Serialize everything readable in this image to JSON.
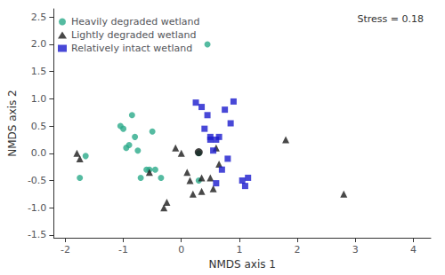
{
  "chart_data": {
    "type": "scatter",
    "xlabel": "NMDS axis 1",
    "ylabel": "NMDS axis 2",
    "annotation": "Stress = 0.18",
    "xlim": [
      -2.2,
      4.3
    ],
    "ylim": [
      -1.55,
      2.65
    ],
    "xticks": [
      -2,
      -1,
      0,
      1,
      2,
      3,
      4
    ],
    "yticks": [
      -1.5,
      {
        "value": -1.0,
        "label": "-1.0"
      },
      -0.5,
      {
        "value": 0.0,
        "label": "0.0"
      },
      0.5,
      {
        "value": 1.0,
        "label": "1.0"
      },
      1.5,
      {
        "value": 2.0,
        "label": "2.0"
      },
      2.5
    ],
    "grid": false,
    "legend": "upper left",
    "series": [
      {
        "name": "Heavily degraded wetland",
        "color": "#2aaa8a",
        "marker": "circle",
        "x": [
          -1.75,
          -1.65,
          -1.05,
          -1.0,
          -0.95,
          -0.9,
          -0.85,
          -0.8,
          -0.75,
          -0.6,
          -0.55,
          -0.5,
          -0.45,
          -0.35,
          0.3,
          0.3,
          0.45,
          -0.7
        ],
        "y": [
          -0.45,
          -0.05,
          0.5,
          0.45,
          0.1,
          0.15,
          0.7,
          0.3,
          0.05,
          -0.3,
          -0.3,
          0.4,
          -0.3,
          -0.45,
          -0.5,
          0.0,
          2.0,
          -0.45
        ]
      },
      {
        "name": "Lightly degraded wetland",
        "color": "#1a1a1a",
        "marker": "triangle",
        "x": [
          -1.8,
          -1.75,
          -0.55,
          -0.3,
          -0.25,
          -0.1,
          0.1,
          0.15,
          0.2,
          0.35,
          0.5,
          0.55,
          0.65,
          1.8,
          2.8,
          0.0,
          0.35,
          0.6
        ],
        "y": [
          0.0,
          -0.1,
          -0.35,
          -1.0,
          -0.9,
          0.1,
          -0.35,
          -0.5,
          -0.75,
          -0.7,
          -0.45,
          -0.65,
          -0.2,
          0.25,
          -0.75,
          0.0,
          -0.45,
          0.1
        ]
      },
      {
        "name": "Relatively intact wetland",
        "color": "#1a1acd",
        "marker": "square",
        "x": [
          0.25,
          0.35,
          0.45,
          0.5,
          0.6,
          0.65,
          0.75,
          0.85,
          0.9,
          1.05,
          1.1,
          1.15,
          0.4,
          0.5,
          0.55,
          0.6,
          0.7,
          0.8
        ],
        "y": [
          0.93,
          0.85,
          0.7,
          0.3,
          0.25,
          0.3,
          0.8,
          0.55,
          0.95,
          -0.5,
          -0.6,
          -0.45,
          0.45,
          0.25,
          0.05,
          -0.55,
          -0.3,
          -0.1
        ]
      },
      {
        "color": "#111111",
        "marker": "circle",
        "x": [
          0.3
        ],
        "y": [
          0.02
        ]
      }
    ]
  }
}
